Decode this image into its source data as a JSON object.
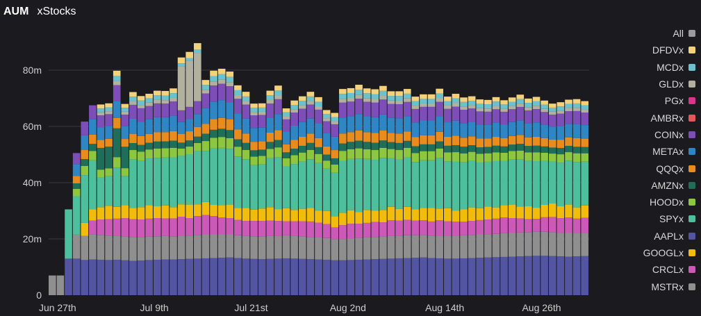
{
  "header": {
    "title": "AUM",
    "subtitle": "xStocks"
  },
  "legend": [
    {
      "name": "All",
      "color": "#9b9b9b"
    },
    {
      "name": "DFDVx",
      "color": "#f4d27c"
    },
    {
      "name": "MCDx",
      "color": "#6cc2cc"
    },
    {
      "name": "GLDx",
      "color": "#b2b09e"
    },
    {
      "name": "PGx",
      "color": "#d6378a"
    },
    {
      "name": "AMBRx",
      "color": "#e3565a"
    },
    {
      "name": "COINx",
      "color": "#7d4db8"
    },
    {
      "name": "METAx",
      "color": "#2f86c4"
    },
    {
      "name": "QQQx",
      "color": "#e98c1e"
    },
    {
      "name": "AMZNx",
      "color": "#1f6e5a"
    },
    {
      "name": "HOODx",
      "color": "#8dc63f"
    },
    {
      "name": "SPYx",
      "color": "#4ebf9c"
    },
    {
      "name": "AAPLx",
      "color": "#5355a2"
    },
    {
      "name": "GOOGLx",
      "color": "#f2bc0c"
    },
    {
      "name": "CRCLx",
      "color": "#cc59b8"
    },
    {
      "name": "MSTRx",
      "color": "#8f8f8f"
    }
  ],
  "chart_data": {
    "type": "bar",
    "stacked": true,
    "title": "AUM",
    "subtitle": "xStocks",
    "ylim": [
      0,
      90
    ],
    "y_ticks": [
      0,
      20,
      40,
      60,
      80
    ],
    "y_tick_labels": [
      "0",
      "20m",
      "40m",
      "60m",
      "80m"
    ],
    "x_tick_labels": [
      {
        "index": 0,
        "label": "Jun 27th"
      },
      {
        "index": 12,
        "label": "Jul 9th"
      },
      {
        "index": 24,
        "label": "Jul 21st"
      },
      {
        "index": 36,
        "label": "Aug 2nd"
      },
      {
        "index": 48,
        "label": "Aug 14th"
      },
      {
        "index": 60,
        "label": "Aug 26th"
      }
    ],
    "grid": true,
    "legend_position": "right",
    "categories": [
      "Jun 27",
      "Jun 28",
      "Jun 29",
      "Jun 30",
      "Jul 1",
      "Jul 2",
      "Jul 3",
      "Jul 4",
      "Jul 5",
      "Jul 6",
      "Jul 7",
      "Jul 8",
      "Jul 9",
      "Jul 10",
      "Jul 11",
      "Jul 12",
      "Jul 13",
      "Jul 14",
      "Jul 15",
      "Jul 16",
      "Jul 17",
      "Jul 18",
      "Jul 19",
      "Jul 20",
      "Jul 21",
      "Jul 22",
      "Jul 23",
      "Jul 24",
      "Jul 25",
      "Jul 26",
      "Jul 27",
      "Jul 28",
      "Jul 29",
      "Jul 30",
      "Jul 31",
      "Aug 1",
      "Aug 2",
      "Aug 3",
      "Aug 4",
      "Aug 5",
      "Aug 6",
      "Aug 7",
      "Aug 8",
      "Aug 9",
      "Aug 10",
      "Aug 11",
      "Aug 12",
      "Aug 13",
      "Aug 14",
      "Aug 15",
      "Aug 16",
      "Aug 17",
      "Aug 18",
      "Aug 19",
      "Aug 20",
      "Aug 21",
      "Aug 22",
      "Aug 23",
      "Aug 24",
      "Aug 25",
      "Aug 26",
      "Aug 27",
      "Aug 28",
      "Aug 29",
      "Aug 30",
      "Aug 31",
      "Sep 1"
    ],
    "series": [
      {
        "name": "AAPLx",
        "values": [
          0,
          0,
          13,
          13,
          12.5,
          12.7,
          12.6,
          12.5,
          12.6,
          12.4,
          12.2,
          12.3,
          12.5,
          12.6,
          12.7,
          12.7,
          12.8,
          12.9,
          13.0,
          13.1,
          13.2,
          13.3,
          13.4,
          13.2,
          13.0,
          12.9,
          12.8,
          12.9,
          13.0,
          13.1,
          13.0,
          12.9,
          12.8,
          12.7,
          12.6,
          12.4,
          12.4,
          12.5,
          12.6,
          12.7,
          12.8,
          12.9,
          13.0,
          13.1,
          13.2,
          13.3,
          13.4,
          13.2,
          13.1,
          13.0,
          13.0,
          13.1,
          13.2,
          13.3,
          13.4,
          13.5,
          13.6,
          13.7,
          13.8,
          13.9,
          14.0,
          14.0,
          13.9,
          13.8,
          13.7,
          13.8,
          13.9
        ]
      },
      {
        "name": "MSTRx",
        "values": [
          7,
          7,
          0,
          8.5,
          8.6,
          8.8,
          8.8,
          8.7,
          8.6,
          8.5,
          8.5,
          8.4,
          8.4,
          8.3,
          8.3,
          8.2,
          8.3,
          8.3,
          8.4,
          8.5,
          8.4,
          8.3,
          8.2,
          8.1,
          8.0,
          8.0,
          8.1,
          8.1,
          8.2,
          8.2,
          8.0,
          8.0,
          7.8,
          7.8,
          7.7,
          7.5,
          7.5,
          7.5,
          7.8,
          7.9,
          7.9,
          8.0,
          8.0,
          8.1,
          8.1,
          8.0,
          8.0,
          8.0,
          8.0,
          8.1,
          8.1,
          8.2,
          8.2,
          8.3,
          8.3,
          8.3,
          8.4,
          8.4,
          8.5,
          8.5,
          8.5,
          8.5,
          8.5,
          8.4,
          8.4,
          8.4,
          8.3
        ]
      },
      {
        "name": "CRCLx",
        "values": [
          0,
          0,
          0,
          0,
          0,
          5,
          5.5,
          5.8,
          6.0,
          6.5,
          6.3,
          6.2,
          6.3,
          6.5,
          6.3,
          6.4,
          6.8,
          6.2,
          6.7,
          6.9,
          6.5,
          6.0,
          5.8,
          5.5,
          5.4,
          5.5,
          5.5,
          5.5,
          5.2,
          5.0,
          5.3,
          5.4,
          5.6,
          5.3,
          5.0,
          4.2,
          5.0,
          5.4,
          5.0,
          5.1,
          5.3,
          5.0,
          5.6,
          5.3,
          5.5,
          5.2,
          5.2,
          5.0,
          5.5,
          5.2,
          5.0,
          4.8,
          5.0,
          5.1,
          5.2,
          5.4,
          5.6,
          5.3,
          5.0,
          4.6,
          4.6,
          5.2,
          5.4,
          5.2,
          5.5,
          5.0,
          5.3
        ]
      },
      {
        "name": "GOOGLx",
        "values": [
          0,
          0,
          0,
          0,
          0,
          0,
          0,
          0,
          0,
          0,
          0,
          0,
          0,
          0,
          0,
          0,
          0,
          0,
          0,
          0,
          0,
          0,
          0,
          0,
          0,
          0,
          0,
          0,
          0,
          0,
          0,
          0,
          0,
          0,
          0,
          0,
          0,
          0,
          0,
          0,
          0,
          0,
          0,
          0,
          0,
          0,
          0,
          0,
          0,
          0,
          0,
          0,
          0,
          0,
          0,
          0,
          0,
          0,
          0,
          0,
          0,
          0,
          0,
          0,
          0,
          0,
          0
        ]
      },
      {
        "name": "SPYx",
        "values": [
          0,
          0,
          0,
          0,
          0,
          0,
          0,
          0,
          0,
          0,
          0,
          0,
          0,
          0,
          0,
          0,
          0,
          0,
          0,
          0,
          0,
          0,
          0,
          0,
          0,
          0,
          0,
          0,
          0,
          0,
          0,
          0,
          0,
          0,
          0,
          0,
          0,
          0,
          0,
          0,
          0,
          0,
          0,
          0,
          0,
          0,
          0,
          0,
          0,
          0,
          0,
          0,
          0,
          0,
          0,
          0,
          0,
          0,
          0,
          0,
          0,
          0,
          0,
          0,
          0,
          0,
          0
        ]
      },
      {
        "name": "HOODx",
        "values": [
          0,
          0,
          0,
          0,
          0,
          0,
          0,
          0,
          0,
          0,
          0,
          0,
          0,
          0,
          0,
          0,
          0,
          0,
          0,
          0,
          0,
          0,
          0,
          0,
          0,
          0,
          0,
          0,
          0,
          0,
          0,
          0,
          0,
          0,
          0,
          0,
          0,
          0,
          0,
          0,
          0,
          0,
          0,
          0,
          0,
          0,
          0,
          0,
          0,
          0,
          0,
          0,
          0,
          0,
          0,
          0,
          0,
          0,
          0,
          0,
          0,
          0,
          0,
          0,
          0,
          0,
          0
        ]
      },
      {
        "name": "AMZNx",
        "values": [
          0,
          0,
          0,
          0,
          0,
          0,
          0,
          0,
          0,
          0,
          0,
          0,
          0,
          0,
          0,
          0,
          0,
          0,
          0,
          0,
          0,
          0,
          0,
          0,
          0,
          0,
          0,
          0,
          0,
          0,
          0,
          0,
          0,
          0,
          0,
          0,
          0,
          0,
          0,
          0,
          0,
          0,
          0,
          0,
          0,
          0,
          0,
          0,
          0,
          0,
          0,
          0,
          0,
          0,
          0,
          0,
          0,
          0,
          0,
          0,
          0,
          0,
          0,
          0,
          0,
          0,
          0
        ]
      },
      {
        "name": "QQQx",
        "values": [
          0,
          0,
          0,
          0,
          0,
          0,
          0,
          0,
          0,
          0,
          0,
          0,
          0,
          0,
          0,
          0,
          0,
          0,
          0,
          0,
          0,
          0,
          0,
          0,
          0,
          0,
          0,
          0,
          0,
          0,
          0,
          0,
          0,
          0,
          0,
          0,
          0,
          0,
          0,
          0,
          0,
          0,
          0,
          0,
          0,
          0,
          0,
          0,
          0,
          0,
          0,
          0,
          0,
          0,
          0,
          0,
          0,
          0,
          0,
          0,
          0,
          0,
          0,
          0,
          0,
          0,
          0
        ]
      },
      {
        "name": "METAx",
        "values": [
          0,
          0,
          0,
          0,
          0,
          0,
          0,
          0,
          0,
          0,
          0,
          0,
          0,
          0,
          0,
          0,
          0,
          0,
          0,
          0,
          0,
          0,
          0,
          0,
          0,
          0,
          0,
          0,
          0,
          0,
          0,
          0,
          0,
          0,
          0,
          0,
          0,
          0,
          0,
          0,
          0,
          0,
          0,
          0,
          0,
          0,
          0,
          0,
          0,
          0,
          0,
          0,
          0,
          0,
          0,
          0,
          0,
          0,
          0,
          0,
          0,
          0,
          0,
          0,
          0,
          0,
          0
        ]
      },
      {
        "name": "COINx",
        "values": [
          0,
          0,
          0,
          0,
          0,
          0,
          0,
          0,
          0,
          0,
          0,
          0,
          0,
          0,
          0,
          0,
          0,
          0,
          0,
          0,
          0,
          0,
          0,
          0,
          0,
          0,
          0,
          0,
          0,
          0,
          0,
          0,
          0,
          0,
          0,
          0,
          0,
          0,
          0,
          0,
          0,
          0,
          0,
          0,
          0,
          0,
          0,
          0,
          0,
          0,
          0,
          0,
          0,
          0,
          0,
          0,
          0,
          0,
          0,
          0,
          0,
          0,
          0,
          0,
          0,
          0,
          0
        ]
      },
      {
        "name": "AMBRx",
        "values": [
          0,
          0,
          0,
          0,
          0,
          0,
          0,
          0,
          0,
          0,
          0,
          0,
          0,
          0,
          0,
          0,
          0,
          0,
          0,
          0,
          0,
          0,
          0,
          0,
          0,
          0,
          0,
          0,
          0,
          0,
          0,
          0,
          0,
          0,
          0,
          0,
          0,
          0,
          0,
          0,
          0,
          0,
          0,
          0,
          0,
          0,
          0,
          0,
          0,
          0,
          0,
          0,
          0,
          0,
          0,
          0,
          0,
          0,
          0,
          0,
          0,
          0,
          0,
          0,
          0,
          0,
          0
        ]
      },
      {
        "name": "PGx",
        "values": [
          0,
          0,
          0,
          0,
          0,
          0,
          0,
          0,
          0,
          0,
          0,
          0,
          0,
          0,
          0,
          0,
          0,
          0,
          0,
          0,
          0,
          0,
          0,
          0,
          0,
          0,
          0,
          0,
          0,
          0,
          0,
          0,
          0,
          0,
          0,
          0,
          0,
          0,
          0,
          0,
          0,
          0,
          0,
          0,
          0,
          0,
          0,
          0,
          0,
          0,
          0,
          0,
          0,
          0,
          0,
          0,
          0,
          0,
          0,
          0,
          0,
          0,
          0,
          0,
          0,
          0,
          0
        ]
      },
      {
        "name": "GLDx",
        "values": [
          0,
          0,
          0,
          0,
          0,
          0,
          0,
          0,
          0,
          0,
          0,
          0,
          0,
          0,
          0,
          0,
          0,
          0,
          0,
          0,
          0,
          0,
          0,
          0,
          0,
          0,
          0,
          0,
          0,
          0,
          0,
          0,
          0,
          0,
          0,
          0,
          0,
          0,
          0,
          0,
          0,
          0,
          0,
          0,
          0,
          0,
          0,
          0,
          0,
          0,
          0,
          0,
          0,
          0,
          0,
          0,
          0,
          0,
          0,
          0,
          0,
          0,
          0,
          0,
          0,
          0,
          0
        ]
      },
      {
        "name": "MCDx",
        "values": [
          0,
          0,
          0,
          0,
          0,
          0,
          0,
          0,
          0,
          0,
          0,
          0,
          0,
          0,
          0,
          0,
          0,
          0,
          0,
          0,
          0,
          0,
          0,
          0,
          0,
          0,
          0,
          0,
          0,
          0,
          0,
          0,
          0,
          0,
          0,
          0,
          0,
          0,
          0,
          0,
          0,
          0,
          0,
          0,
          0,
          0,
          0,
          0,
          0,
          0,
          0,
          0,
          0,
          0,
          0,
          0,
          0,
          0,
          0,
          0,
          0,
          0,
          0,
          0,
          0,
          0,
          0
        ]
      },
      {
        "name": "DFDVx",
        "values": [
          0,
          0,
          0,
          0,
          0,
          0,
          0,
          0,
          0,
          0,
          0,
          0,
          0,
          0,
          0,
          0,
          0,
          0,
          0,
          0,
          0,
          0,
          0,
          0,
          0,
          0,
          0,
          0,
          0,
          0,
          0,
          0,
          0,
          0,
          0,
          0,
          0,
          0,
          0,
          0,
          0,
          0,
          0,
          0,
          0,
          0,
          0,
          0,
          0,
          0,
          0,
          0,
          0,
          0,
          0,
          0,
          0,
          0,
          0,
          0,
          0,
          0,
          0,
          0,
          0,
          0,
          0
        ]
      }
    ]
  }
}
